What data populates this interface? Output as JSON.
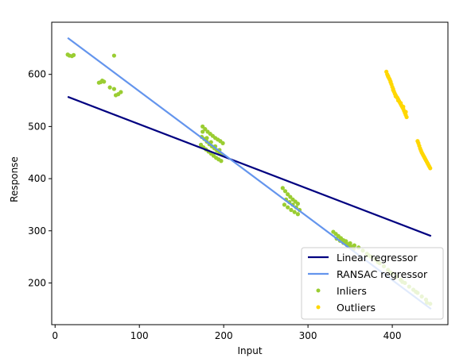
{
  "chart_data": {
    "type": "scatter",
    "title": "",
    "xlabel": "Input",
    "ylabel": "Response",
    "xlim": [
      -4,
      466
    ],
    "ylim": [
      120,
      700
    ],
    "xticks": [
      0,
      100,
      200,
      300,
      400
    ],
    "yticks": [
      200,
      300,
      400,
      500,
      600
    ],
    "grid": false,
    "legend_position": "lower-right",
    "colors": {
      "linear": "#000080",
      "ransac": "#6495ED",
      "inliers": "#9ACD32",
      "outliers": "#FFD700"
    },
    "lines": [
      {
        "name": "Linear regressor",
        "x": [
          15,
          446
        ],
        "y": [
          557,
          290
        ]
      },
      {
        "name": "RANSAC regressor",
        "x": [
          15,
          446
        ],
        "y": [
          670,
          150
        ]
      }
    ],
    "series": [
      {
        "name": "Inliers",
        "x": [
          15,
          17,
          20,
          22,
          52,
          54,
          56,
          58,
          65,
          70,
          72,
          75,
          78,
          70,
          175,
          178,
          181,
          184,
          187,
          190,
          193,
          196,
          199,
          174,
          177,
          180,
          183,
          186,
          189,
          192,
          195,
          198,
          173,
          176,
          179,
          182,
          185,
          188,
          191,
          194,
          197,
          175,
          180,
          185,
          190,
          195,
          270,
          273,
          276,
          279,
          282,
          285,
          288,
          274,
          278,
          282,
          286,
          290,
          272,
          276,
          280,
          284,
          288,
          330,
          333,
          336,
          339,
          342,
          345,
          348,
          351,
          334,
          338,
          342,
          346,
          350,
          354,
          345,
          350,
          355,
          360,
          365,
          370,
          375,
          380,
          385,
          390,
          395,
          400,
          405,
          410,
          415,
          420,
          425,
          430,
          435,
          440,
          445,
          372,
          383,
          398,
          412,
          428,
          441
        ],
        "y": [
          638,
          636,
          635,
          637,
          584,
          585,
          588,
          586,
          575,
          572,
          560,
          562,
          566,
          636,
          500,
          495,
          490,
          486,
          482,
          478,
          475,
          472,
          468,
          480,
          476,
          471,
          466,
          462,
          458,
          454,
          450,
          446,
          465,
          460,
          456,
          452,
          448,
          444,
          440,
          437,
          434,
          490,
          478,
          470,
          462,
          455,
          382,
          376,
          370,
          365,
          360,
          356,
          352,
          360,
          355,
          350,
          345,
          340,
          350,
          345,
          340,
          336,
          332,
          298,
          294,
          290,
          286,
          282,
          278,
          274,
          270,
          285,
          281,
          277,
          273,
          269,
          265,
          280,
          276,
          272,
          268,
          262,
          256,
          250,
          245,
          238,
          232,
          225,
          218,
          212,
          206,
          200,
          193,
          187,
          181,
          174,
          168,
          160,
          253,
          240,
          220,
          202,
          183,
          162
        ]
      },
      {
        "name": "Outliers",
        "x": [
          393,
          394,
          395,
          396,
          397,
          398,
          399,
          400,
          401,
          402,
          403,
          404,
          405,
          406,
          407,
          408,
          409,
          410,
          411,
          412,
          413,
          414,
          415,
          416,
          417,
          395,
          398,
          401,
          404,
          407,
          410,
          413,
          416,
          430,
          431,
          432,
          433,
          434,
          435,
          436,
          437,
          438,
          439,
          440,
          441,
          442,
          443,
          444,
          445
        ],
        "y": [
          605,
          600,
          596,
          593,
          590,
          586,
          581,
          576,
          572,
          567,
          563,
          560,
          557,
          555,
          552,
          549,
          546,
          543,
          540,
          537,
          534,
          530,
          526,
          522,
          518,
          597,
          585,
          570,
          558,
          550,
          545,
          538,
          528,
          472,
          468,
          463,
          458,
          454,
          450,
          447,
          444,
          441,
          438,
          435,
          432,
          429,
          426,
          423,
          420
        ]
      }
    ]
  }
}
